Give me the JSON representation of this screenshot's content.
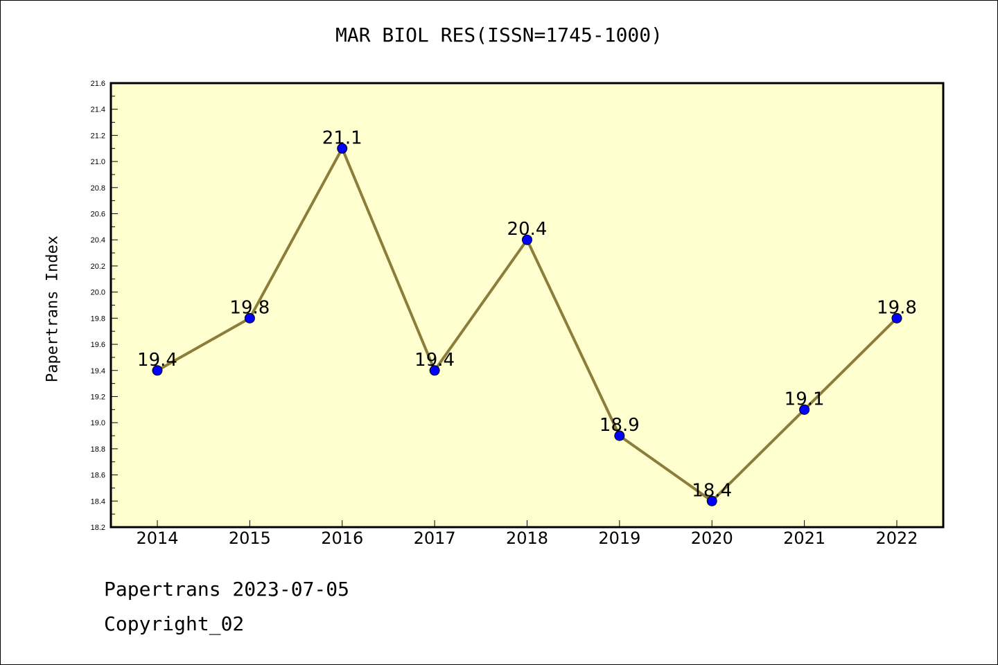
{
  "chart_data": {
    "type": "line",
    "title": "MAR BIOL RES(ISSN=1745-1000)",
    "xlabel": "",
    "ylabel": "Papertrans Index",
    "categories": [
      "2014",
      "2015",
      "2016",
      "2017",
      "2018",
      "2019",
      "2020",
      "2021",
      "2022"
    ],
    "series": [
      {
        "values": [
          19.4,
          19.8,
          21.1,
          19.4,
          20.4,
          18.9,
          18.4,
          19.1,
          19.8
        ]
      }
    ],
    "data_labels": [
      "19.4",
      "19.8",
      "21.1",
      "19.4",
      "20.4",
      "18.9",
      "18.4",
      "19.1",
      "19.8"
    ],
    "ylim": [
      18.2,
      21.6
    ],
    "yticks": [
      "18.2",
      "18.4",
      "18.6",
      "18.8",
      "19.0",
      "19.2",
      "19.4",
      "19.6",
      "19.8",
      "20.0",
      "20.2",
      "20.4",
      "20.6",
      "20.8",
      "21.0",
      "21.2",
      "21.4",
      "21.6"
    ],
    "grid": false,
    "colors": {
      "plot_background": "#ffffd0",
      "line": "#8b7d3a",
      "marker": "#0000ff"
    }
  },
  "footer": {
    "line1": "Papertrans 2023-07-05",
    "line2": "Copyright_02"
  }
}
